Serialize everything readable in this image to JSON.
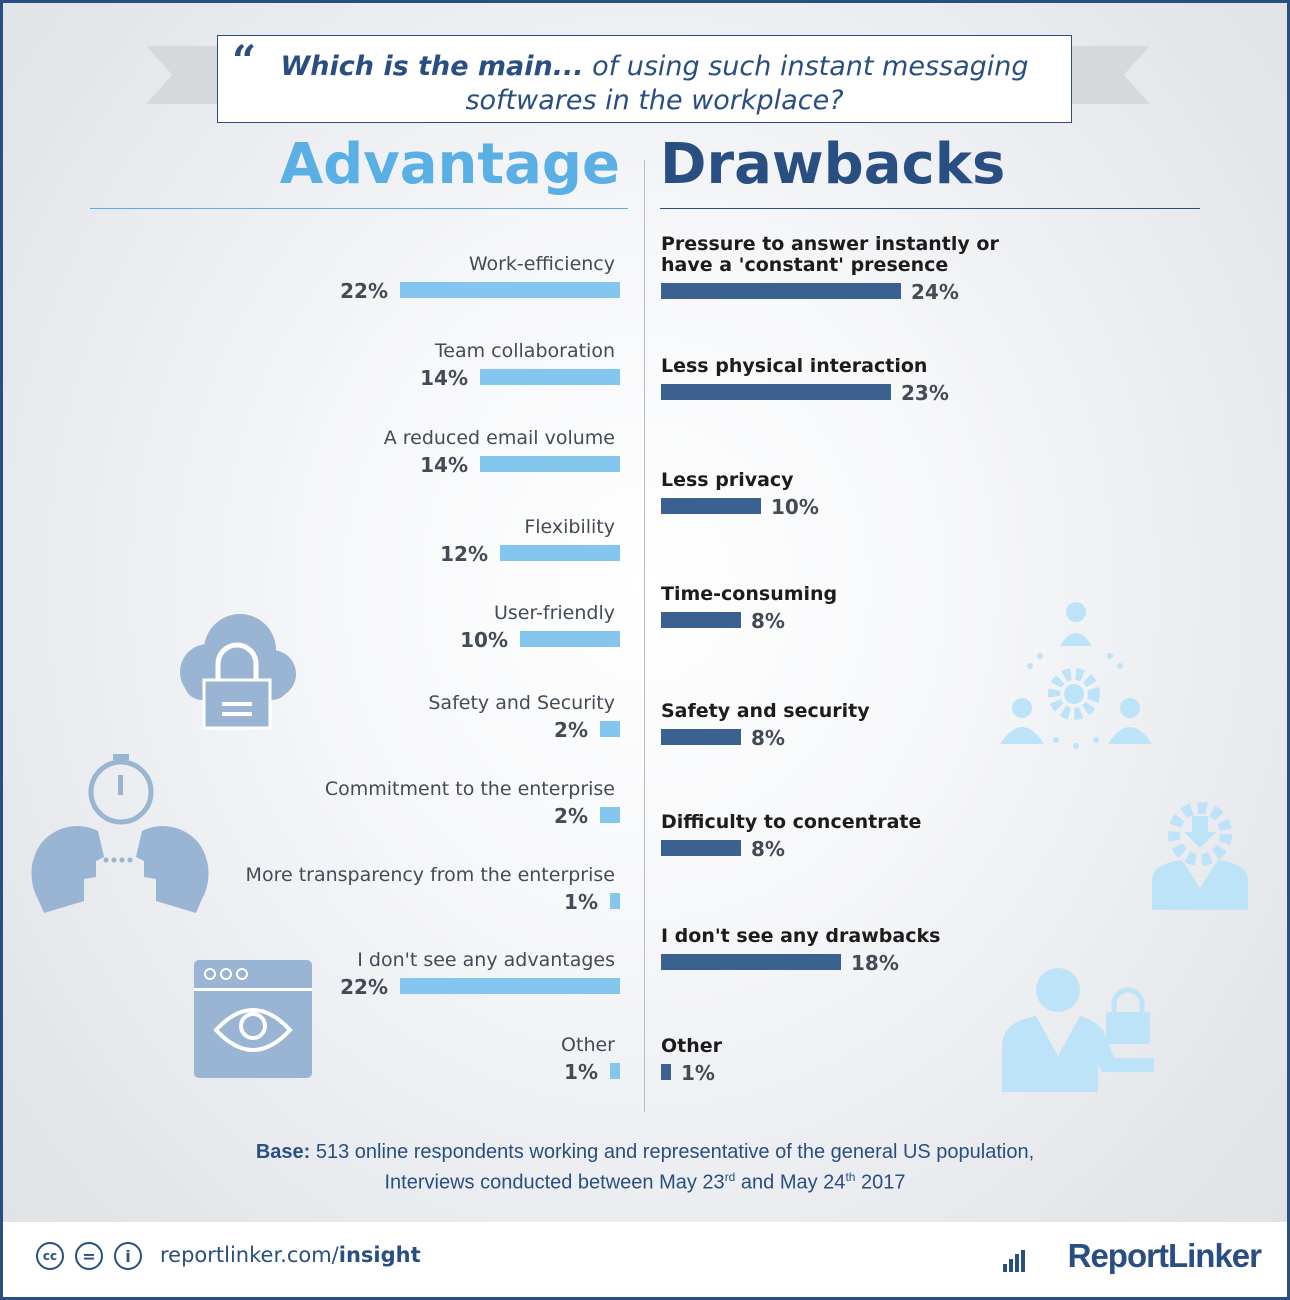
{
  "question": {
    "bold_part": "Which is the main...",
    "rest_line1": " of using such instant messaging",
    "line2": "softwares in the workplace?"
  },
  "headings": {
    "advantage": "Advantage",
    "drawbacks": "Drawbacks"
  },
  "colors": {
    "advantage": "#84c6ee",
    "drawback": "#3b6191",
    "navy": "#294f82",
    "accent": "#5aafe4"
  },
  "chart_data": [
    {
      "type": "bar",
      "orientation": "horizontal",
      "direction": "right-to-left",
      "title": "Advantage",
      "unit": "%",
      "categories": [
        "Work-efficiency",
        "Team collaboration",
        "A reduced email volume",
        "Flexibility",
        "User-friendly",
        "Safety and Security",
        "Commitment to the enterprise",
        "More transparency from the enterprise",
        "I don't see any advantages",
        "Other"
      ],
      "values": [
        22,
        14,
        14,
        12,
        10,
        2,
        2,
        1,
        22,
        1
      ],
      "value_labels": [
        "22%",
        "14%",
        "14%",
        "12%",
        "10%",
        "2%",
        "2%",
        "1%",
        "22%",
        "1%"
      ]
    },
    {
      "type": "bar",
      "orientation": "horizontal",
      "direction": "left-to-right",
      "title": "Drawbacks",
      "unit": "%",
      "categories": [
        [
          "Pressure to answer instantly or",
          "have a 'constant' presence"
        ],
        [
          "Less physical interaction"
        ],
        [
          "Less privacy"
        ],
        [
          "Time-consuming"
        ],
        [
          "Safety and security"
        ],
        [
          "Difficulty to concentrate"
        ],
        [
          "I don't see any drawbacks"
        ],
        [
          "Other"
        ]
      ],
      "values": [
        24,
        23,
        10,
        8,
        8,
        8,
        18,
        1
      ],
      "value_labels": [
        "24%",
        "23%",
        "10%",
        "8%",
        "8%",
        "8%",
        "18%",
        "1%"
      ]
    }
  ],
  "base": {
    "label": "Base:",
    "line1": " 513 online respondents working and representative of the general US population,",
    "line2a": "Interviews conducted between May 23",
    "sup1": "rd",
    "line2b": " and May 24",
    "sup2": "th",
    "line2c": " 2017"
  },
  "footer": {
    "url_plain": "reportlinker.com/",
    "url_bold": "insight",
    "brand": "ReportLinker",
    "cc_icons": [
      "cc",
      "=",
      "i"
    ]
  }
}
